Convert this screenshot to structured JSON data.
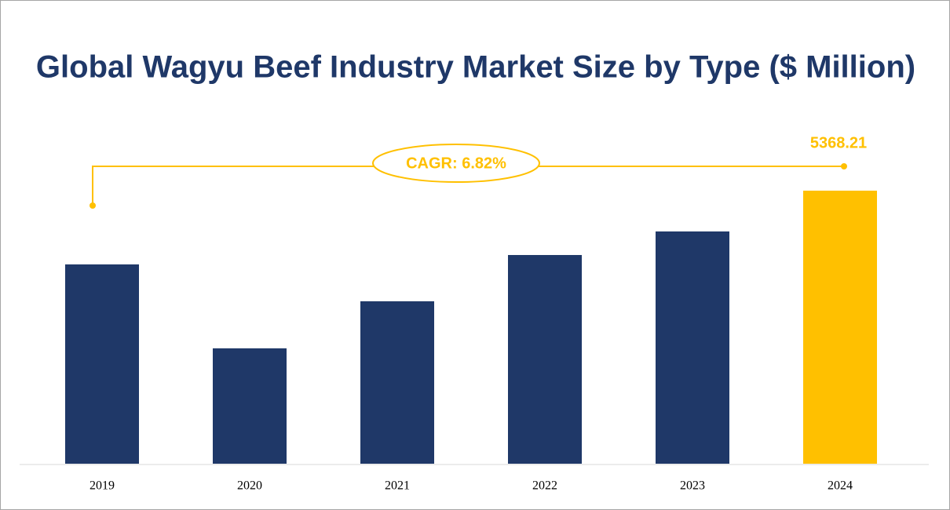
{
  "chart_data": {
    "type": "bar",
    "title": "Global Wagyu Beef Industry Market Size by Type ($ Million)",
    "categories": [
      "2019",
      "2020",
      "2021",
      "2022",
      "2023",
      "2024"
    ],
    "values": [
      3918,
      2268,
      3193,
      4103,
      4566,
      5368.21
    ],
    "colors": [
      "#1f3868",
      "#1f3868",
      "#1f3868",
      "#1f3868",
      "#1f3868",
      "#ffc000"
    ],
    "annotation": "CAGR: 6.82%"
  }
}
